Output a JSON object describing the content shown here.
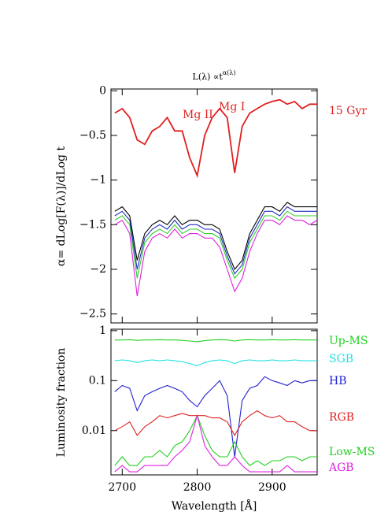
{
  "chart_data": [
    {
      "type": "line",
      "title": "L(λ) ∝t",
      "title_superscript": "α(λ)",
      "y_label": "α= dLog[F(λ)]/dLog t",
      "annotations": [
        "Mg II",
        "Mg I"
      ],
      "x": [
        2690,
        2700,
        2710,
        2720,
        2730,
        2740,
        2750,
        2760,
        2770,
        2780,
        2790,
        2800,
        2810,
        2820,
        2830,
        2840,
        2850,
        2860,
        2870,
        2880,
        2890,
        2900,
        2910,
        2920,
        2930,
        2940,
        2950,
        2960
      ],
      "xlim": [
        2685,
        2960
      ],
      "xticks": [
        2700,
        2800,
        2900
      ],
      "ylim": [
        -2.6,
        0.02
      ],
      "yticks": [
        0,
        {
          "value": -0.5,
          "label": "−0.5"
        },
        {
          "value": -1,
          "label": "−1"
        },
        {
          "value": -1.5,
          "label": "−1.5"
        },
        {
          "value": -2,
          "label": "−2"
        },
        {
          "value": -2.5,
          "label": "−2.5"
        }
      ],
      "series": [
        {
          "color": "#e020e0",
          "values": [
            -1.5,
            -1.45,
            -1.6,
            -2.3,
            -1.8,
            -1.65,
            -1.6,
            -1.65,
            -1.55,
            -1.65,
            -1.6,
            -1.6,
            -1.65,
            -1.65,
            -1.75,
            -2.0,
            -2.25,
            -2.1,
            -1.8,
            -1.6,
            -1.45,
            -1.45,
            -1.5,
            -1.4,
            -1.45,
            -1.45,
            -1.5,
            -1.45
          ]
        },
        {
          "color": "#30d030",
          "values": [
            -1.45,
            -1.4,
            -1.5,
            -2.1,
            -1.7,
            -1.6,
            -1.55,
            -1.6,
            -1.5,
            -1.6,
            -1.55,
            -1.55,
            -1.6,
            -1.6,
            -1.65,
            -1.9,
            -2.1,
            -2.0,
            -1.7,
            -1.55,
            -1.4,
            -1.4,
            -1.45,
            -1.35,
            -1.4,
            -1.4,
            -1.4,
            -1.4
          ]
        },
        {
          "color": "#2030c0",
          "values": [
            -1.4,
            -1.35,
            -1.45,
            -2.0,
            -1.65,
            -1.55,
            -1.5,
            -1.55,
            -1.45,
            -1.55,
            -1.5,
            -1.5,
            -1.55,
            -1.55,
            -1.6,
            -1.85,
            -2.05,
            -1.95,
            -1.65,
            -1.5,
            -1.35,
            -1.35,
            -1.4,
            -1.3,
            -1.35,
            -1.35,
            -1.35,
            -1.35
          ]
        },
        {
          "color": "#000000",
          "values": [
            -1.35,
            -1.3,
            -1.4,
            -1.9,
            -1.6,
            -1.5,
            -1.45,
            -1.5,
            -1.4,
            -1.5,
            -1.45,
            -1.45,
            -1.5,
            -1.5,
            -1.55,
            -1.8,
            -2.0,
            -1.9,
            -1.6,
            -1.45,
            -1.3,
            -1.3,
            -1.35,
            -1.25,
            -1.3,
            -1.3,
            -1.3,
            -1.3
          ]
        },
        {
          "name": "15 Gyr",
          "color": "#e02020",
          "values": [
            -0.25,
            -0.2,
            -0.3,
            -0.55,
            -0.6,
            -0.45,
            -0.4,
            -0.3,
            -0.45,
            -0.45,
            -0.75,
            -0.95,
            -0.5,
            -0.3,
            -0.2,
            -0.3,
            -0.92,
            -0.4,
            -0.25,
            -0.2,
            -0.15,
            -0.12,
            -0.1,
            -0.15,
            -0.12,
            -0.2,
            -0.15,
            -0.15
          ]
        }
      ]
    },
    {
      "type": "line",
      "log_scale": true,
      "x_label": "Wavelength [Å]",
      "y_label": "Luminosity fraction",
      "x": [
        2690,
        2700,
        2710,
        2720,
        2730,
        2740,
        2750,
        2760,
        2770,
        2780,
        2790,
        2800,
        2810,
        2820,
        2830,
        2840,
        2850,
        2860,
        2870,
        2880,
        2890,
        2900,
        2910,
        2920,
        2930,
        2940,
        2950,
        2960
      ],
      "xlim": [
        2685,
        2960
      ],
      "xticks": [
        2700,
        2800,
        2900
      ],
      "ylim": [
        0.0013,
        1.07
      ],
      "yticks": [
        1,
        0.1,
        0.01
      ],
      "series": [
        {
          "name": "Up-MS",
          "color": "#20d020",
          "values": [
            0.65,
            0.65,
            0.66,
            0.64,
            0.65,
            0.65,
            0.66,
            0.65,
            0.65,
            0.64,
            0.62,
            0.6,
            0.63,
            0.65,
            0.66,
            0.65,
            0.62,
            0.65,
            0.66,
            0.65,
            0.65,
            0.66,
            0.65,
            0.65,
            0.66,
            0.65,
            0.65,
            0.65
          ]
        },
        {
          "name": "SGB",
          "color": "#20e0e0",
          "values": [
            0.25,
            0.26,
            0.25,
            0.23,
            0.25,
            0.26,
            0.25,
            0.26,
            0.25,
            0.24,
            0.22,
            0.2,
            0.23,
            0.25,
            0.26,
            0.25,
            0.22,
            0.25,
            0.26,
            0.25,
            0.25,
            0.26,
            0.25,
            0.25,
            0.26,
            0.25,
            0.25,
            0.25
          ]
        },
        {
          "name": "HB",
          "color": "#2020d0",
          "values": [
            0.06,
            0.08,
            0.07,
            0.025,
            0.05,
            0.06,
            0.07,
            0.08,
            0.07,
            0.06,
            0.04,
            0.03,
            0.05,
            0.07,
            0.1,
            0.05,
            0.003,
            0.04,
            0.07,
            0.08,
            0.12,
            0.1,
            0.09,
            0.08,
            0.1,
            0.09,
            0.1,
            0.1
          ]
        },
        {
          "name": "RGB",
          "color": "#e02020",
          "values": [
            0.01,
            0.012,
            0.015,
            0.008,
            0.012,
            0.015,
            0.02,
            0.018,
            0.02,
            0.022,
            0.02,
            0.02,
            0.02,
            0.018,
            0.018,
            0.015,
            0.008,
            0.015,
            0.02,
            0.025,
            0.02,
            0.018,
            0.02,
            0.015,
            0.015,
            0.012,
            0.01,
            0.01
          ]
        },
        {
          "name": "Low-MS",
          "color": "#20d020",
          "values": [
            0.002,
            0.003,
            0.002,
            0.002,
            0.003,
            0.003,
            0.004,
            0.003,
            0.005,
            0.006,
            0.01,
            0.02,
            0.008,
            0.004,
            0.003,
            0.003,
            0.006,
            0.003,
            0.002,
            0.0025,
            0.002,
            0.0025,
            0.0025,
            0.003,
            0.003,
            0.0025,
            0.003,
            0.003
          ]
        },
        {
          "name": "AGB",
          "color": "#e020e0",
          "values": [
            0.0015,
            0.002,
            0.0015,
            0.0015,
            0.002,
            0.002,
            0.002,
            0.002,
            0.003,
            0.004,
            0.006,
            0.02,
            0.005,
            0.003,
            0.002,
            0.002,
            0.003,
            0.002,
            0.0015,
            0.0015,
            0.0015,
            0.0015,
            0.0015,
            0.002,
            0.0015,
            0.0015,
            0.0015,
            0.0015
          ]
        }
      ]
    }
  ]
}
